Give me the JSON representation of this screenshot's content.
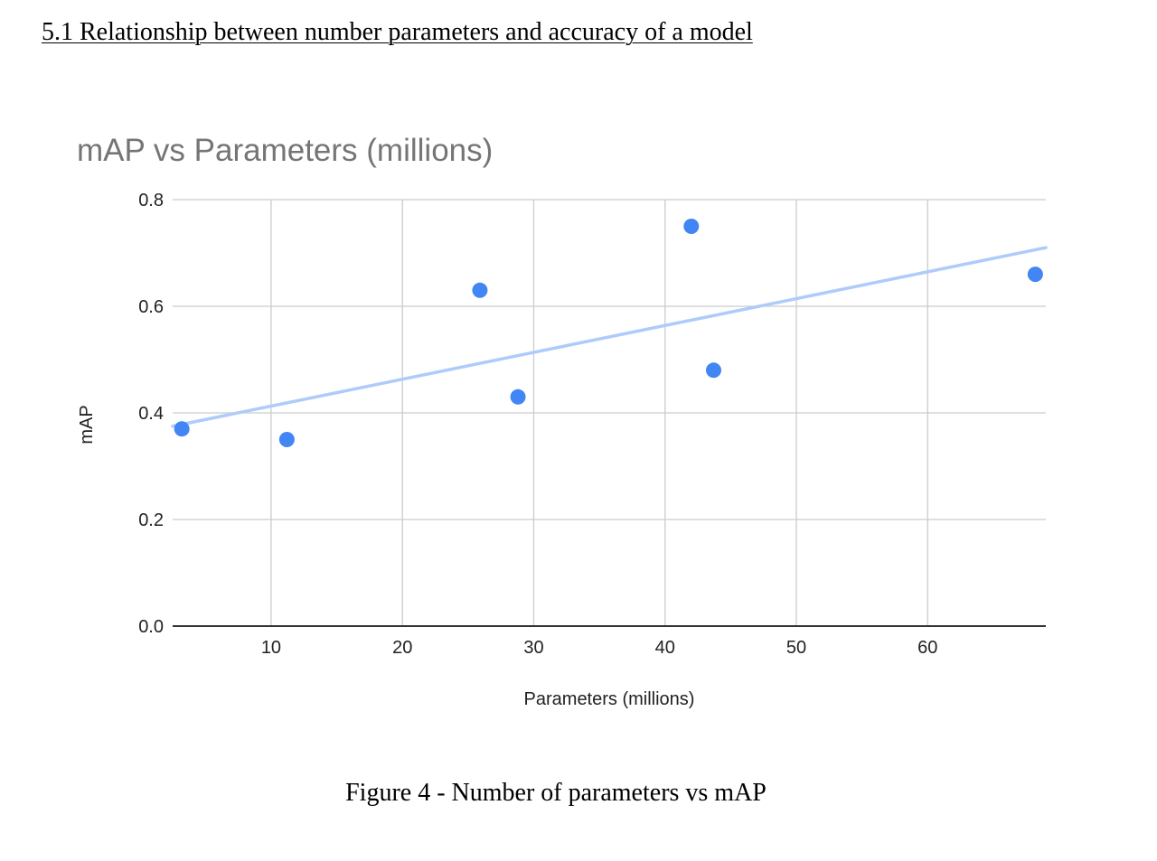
{
  "document": {
    "section_heading": "5.1 Relationship between number parameters and accuracy of a model",
    "figure_caption": "Figure 4 - Number of parameters vs mAP"
  },
  "chart_data": {
    "type": "scatter",
    "title": "mAP vs Parameters (millions)",
    "xlabel": "Parameters (millions)",
    "ylabel": "mAP",
    "xlim": [
      2.5,
      69
    ],
    "ylim": [
      0,
      0.8
    ],
    "x_ticks": [
      10,
      20,
      30,
      40,
      50,
      60
    ],
    "x_tick_labels": [
      "10",
      "20",
      "30",
      "40",
      "50",
      "60"
    ],
    "y_ticks": [
      0,
      0.2,
      0.4,
      0.6,
      0.8
    ],
    "y_tick_labels": [
      "0.0",
      "0.2",
      "0.4",
      "0.6",
      "0.8"
    ],
    "grid": true,
    "series": [
      {
        "points": [
          {
            "x": 3.2,
            "y": 0.37
          },
          {
            "x": 11.2,
            "y": 0.35
          },
          {
            "x": 25.9,
            "y": 0.63
          },
          {
            "x": 28.8,
            "y": 0.43
          },
          {
            "x": 42.0,
            "y": 0.75
          },
          {
            "x": 43.7,
            "y": 0.48
          },
          {
            "x": 68.2,
            "y": 0.66
          }
        ],
        "color": "#4285f4"
      }
    ],
    "trendline": {
      "type": "linear",
      "color": "#aecbfa",
      "start": {
        "x": 2.5,
        "y": 0.375
      },
      "end": {
        "x": 69,
        "y": 0.71
      }
    }
  }
}
